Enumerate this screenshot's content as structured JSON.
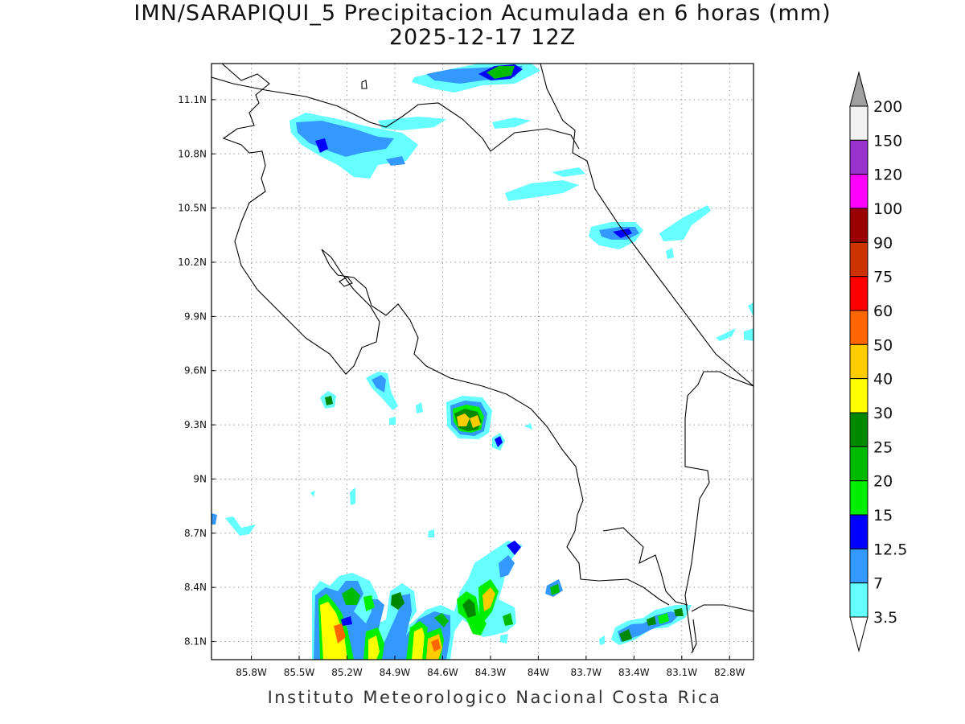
{
  "title": {
    "line1": "IMN/SARAPIQUI_5 Precipitacion Acumulada en 6 horas (mm)",
    "line2": "2025-12-17 12Z"
  },
  "footer": "Instituto Meteorologico Nacional Costa Rica",
  "map": {
    "lon_range": [
      -86.05,
      -82.65
    ],
    "lat_range": [
      8.0,
      11.3
    ],
    "lon_ticks": [
      "85.8W",
      "85.5W",
      "85.2W",
      "84.9W",
      "84.6W",
      "84.3W",
      "84W",
      "83.7W",
      "83.4W",
      "83.1W",
      "82.8W"
    ],
    "lat_ticks": [
      "11.1N",
      "10.8N",
      "10.5N",
      "10.2N",
      "9.9N",
      "9.6N",
      "9.3N",
      "9N",
      "8.7N",
      "8.4N",
      "8.1N"
    ],
    "grid": "dotted"
  },
  "colorbar": {
    "levels": [
      "200",
      "150",
      "120",
      "100",
      "90",
      "75",
      "60",
      "50",
      "40",
      "30",
      "25",
      "20",
      "15",
      "12.5",
      "7",
      "3.5"
    ],
    "colors": [
      "#f2f2f2",
      "#9933cc",
      "#ff00ff",
      "#990000",
      "#cc3300",
      "#ff0000",
      "#ff6600",
      "#ffcc00",
      "#ffff00",
      "#008800",
      "#00bb00",
      "#00ee00",
      "#0000ff",
      "#3399ff",
      "#66ffff"
    ],
    "max_arrow_color": "#a0a0a0"
  }
}
